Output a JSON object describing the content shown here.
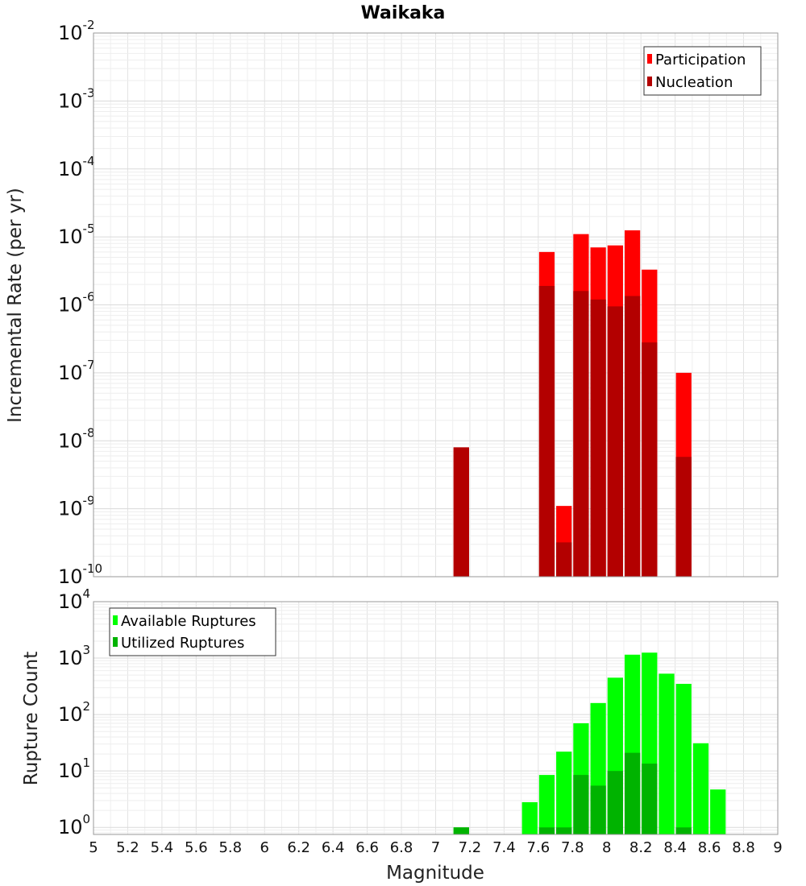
{
  "chart_data": [
    {
      "type": "bar",
      "title": "Waikaka",
      "ylabel": "Incremental Rate (per yr)",
      "xlabel": "",
      "xlim": [
        5,
        9
      ],
      "ylim": [
        1e-10,
        0.01
      ],
      "yscale": "log",
      "bin_width": 0.1,
      "grid": true,
      "legend_position": "top-right",
      "yticks": [
        {
          "base": "10",
          "exp": "-10",
          "value": 1e-10
        },
        {
          "base": "10",
          "exp": "-9",
          "value": 1e-09
        },
        {
          "base": "10",
          "exp": "-8",
          "value": 1e-08
        },
        {
          "base": "10",
          "exp": "-7",
          "value": 1e-07
        },
        {
          "base": "10",
          "exp": "-6",
          "value": 1e-06
        },
        {
          "base": "10",
          "exp": "-5",
          "value": 1e-05
        },
        {
          "base": "10",
          "exp": "-4",
          "value": 0.0001
        },
        {
          "base": "10",
          "exp": "-3",
          "value": 0.001
        },
        {
          "base": "10",
          "exp": "-2",
          "value": 0.01
        }
      ],
      "series": [
        {
          "name": "Participation",
          "color": "#ff0000",
          "x": [
            7.15,
            7.65,
            7.75,
            7.85,
            7.95,
            8.05,
            8.15,
            8.25,
            8.45
          ],
          "values": [
            8e-09,
            6e-06,
            1.1e-09,
            1.1e-05,
            7e-06,
            7.5e-06,
            1.25e-05,
            3.3e-06,
            1e-07
          ]
        },
        {
          "name": "Nucleation",
          "color": "#b30000",
          "x": [
            7.15,
            7.65,
            7.75,
            7.85,
            7.95,
            8.05,
            8.15,
            8.25,
            8.45
          ],
          "values": [
            8e-09,
            1.9e-06,
            3.2e-10,
            1.6e-06,
            1.2e-06,
            9.5e-07,
            1.35e-06,
            2.8e-07,
            5.8e-09
          ]
        }
      ]
    },
    {
      "type": "bar",
      "title": "",
      "ylabel": "Rupture Count",
      "xlabel": "Magnitude",
      "xlim": [
        5,
        9
      ],
      "ylim": [
        0.75,
        10000
      ],
      "yscale": "log",
      "bin_width": 0.1,
      "grid": true,
      "legend_position": "top-left",
      "xticks": [
        "5",
        "5.2",
        "5.4",
        "5.6",
        "5.8",
        "6",
        "6.2",
        "6.4",
        "6.6",
        "6.8",
        "7",
        "7.2",
        "7.4",
        "7.6",
        "7.8",
        "8",
        "8.2",
        "8.4",
        "8.6",
        "8.8",
        "9"
      ],
      "yticks": [
        {
          "base": "10",
          "exp": "0",
          "value": 1
        },
        {
          "base": "10",
          "exp": "1",
          "value": 10
        },
        {
          "base": "10",
          "exp": "2",
          "value": 100
        },
        {
          "base": "10",
          "exp": "3",
          "value": 1000
        },
        {
          "base": "10",
          "exp": "4",
          "value": 10000
        }
      ],
      "series": [
        {
          "name": "Available Ruptures",
          "color": "#00ff00",
          "x": [
            7.15,
            7.55,
            7.65,
            7.75,
            7.85,
            7.95,
            8.05,
            8.15,
            8.25,
            8.35,
            8.45,
            8.55,
            8.65
          ],
          "values": [
            1,
            2.8,
            8.5,
            22,
            70,
            160,
            450,
            1150,
            1250,
            530,
            350,
            31,
            4.7
          ]
        },
        {
          "name": "Utilized Ruptures",
          "color": "#00b300",
          "x": [
            7.15,
            7.65,
            7.75,
            7.85,
            7.95,
            8.05,
            8.15,
            8.25,
            8.45
          ],
          "values": [
            1,
            1,
            1,
            8.5,
            5.5,
            10,
            21,
            13.5,
            1
          ]
        }
      ]
    }
  ]
}
